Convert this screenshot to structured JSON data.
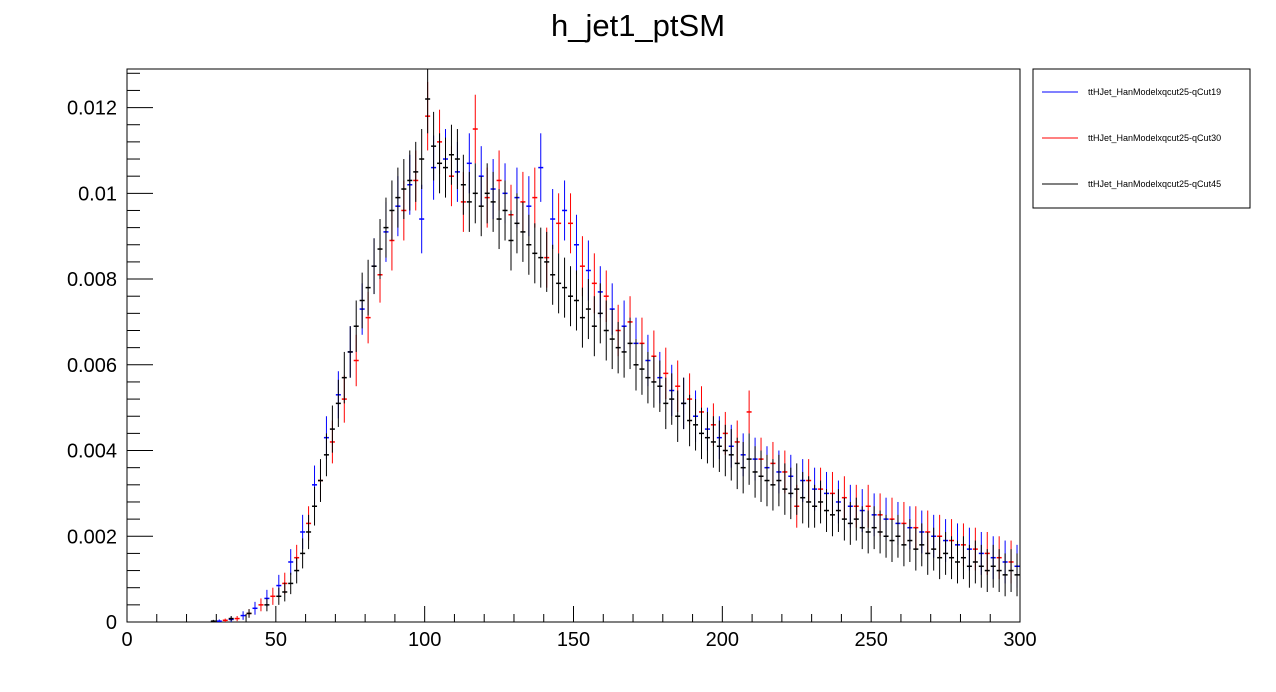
{
  "chart_data": {
    "type": "scatter",
    "title": "h_jet1_ptSM",
    "xlabel": "",
    "ylabel": "",
    "xlim": [
      0,
      300
    ],
    "ylim": [
      0,
      0.0129
    ],
    "grid": false,
    "legend_position": "right",
    "x_ticks": [
      0,
      50,
      100,
      150,
      200,
      250,
      300
    ],
    "x_tick_labels": [
      "0",
      "50",
      "100",
      "150",
      "200",
      "250",
      "300"
    ],
    "y_ticks": [
      0,
      0.002,
      0.004,
      0.006,
      0.008,
      0.01,
      0.012
    ],
    "y_tick_labels": [
      "0",
      "0.002",
      "0.004",
      "0.006",
      "0.008",
      "0.01",
      "0.012"
    ],
    "series": [
      {
        "name": "ttHJet_HanModelxqcut25-qCut19",
        "color": "#0000ff",
        "x": [
          31,
          35,
          39,
          43,
          47,
          51,
          55,
          59,
          63,
          67,
          71,
          75,
          79,
          83,
          87,
          91,
          95,
          99,
          103,
          107,
          111,
          115,
          119,
          123,
          127,
          131,
          135,
          139,
          143,
          147,
          151,
          155,
          159,
          163,
          167,
          171,
          175,
          179,
          183,
          187,
          191,
          195,
          199,
          203,
          207,
          211,
          215,
          219,
          223,
          227,
          231,
          235,
          239,
          243,
          247,
          251,
          255,
          259,
          263,
          267,
          271,
          275,
          279,
          283,
          287,
          291,
          295,
          299
        ],
        "y": [
          2e-05,
          6e-05,
          0.00015,
          0.00032,
          0.00055,
          0.00085,
          0.0014,
          0.0021,
          0.0032,
          0.0043,
          0.0053,
          0.0063,
          0.0073,
          0.0083,
          0.0091,
          0.0097,
          0.0102,
          0.0094,
          0.0106,
          0.0108,
          0.0105,
          0.0107,
          0.0104,
          0.0101,
          0.01,
          0.0099,
          0.0097,
          0.0106,
          0.0094,
          0.0096,
          0.0088,
          0.0082,
          0.0077,
          0.0073,
          0.0069,
          0.0065,
          0.0061,
          0.0057,
          0.0054,
          0.0051,
          0.0048,
          0.0045,
          0.0043,
          0.0041,
          0.0039,
          0.0038,
          0.0036,
          0.0035,
          0.0034,
          0.0033,
          0.0031,
          0.003,
          0.0028,
          0.0027,
          0.0026,
          0.0025,
          0.0024,
          0.0023,
          0.0022,
          0.0021,
          0.002,
          0.0019,
          0.0018,
          0.0017,
          0.0016,
          0.0015,
          0.0014,
          0.0013
        ],
        "yerr": [
          4e-05,
          6e-05,
          0.0001,
          0.00015,
          0.0002,
          0.00025,
          0.0003,
          0.0004,
          0.00045,
          0.0005,
          0.00055,
          0.0006,
          0.0006,
          0.00065,
          0.0007,
          0.0007,
          0.0007,
          0.0008,
          0.00075,
          0.0007,
          0.0007,
          0.0007,
          0.0007,
          0.0007,
          0.0007,
          0.0007,
          0.0007,
          0.0008,
          0.0007,
          0.0007,
          0.0007,
          0.0007,
          0.0006,
          0.0006,
          0.0006,
          0.0006,
          0.0006,
          0.0006,
          0.0006,
          0.0006,
          0.0006,
          0.0005,
          0.0005,
          0.0005,
          0.0005,
          0.0005,
          0.0005,
          0.0005,
          0.0005,
          0.0005,
          0.0005,
          0.0005,
          0.0005,
          0.0005,
          0.0005,
          0.0005,
          0.0005,
          0.0005,
          0.0005,
          0.0005,
          0.0005,
          0.0005,
          0.0005,
          0.0005,
          0.0005,
          0.0005,
          0.0005,
          0.0005
        ]
      },
      {
        "name": "ttHJet_HanModelxqcut25-qCut30",
        "color": "#ff0000",
        "x": [
          33,
          37,
          41,
          45,
          49,
          53,
          57,
          61,
          65,
          69,
          73,
          77,
          81,
          85,
          89,
          93,
          97,
          101,
          105,
          109,
          113,
          117,
          121,
          125,
          129,
          133,
          137,
          141,
          145,
          149,
          153,
          157,
          161,
          165,
          169,
          173,
          177,
          181,
          185,
          189,
          193,
          197,
          201,
          205,
          209,
          213,
          217,
          221,
          225,
          229,
          233,
          237,
          241,
          245,
          249,
          253,
          257,
          261,
          265,
          269,
          273,
          277,
          281,
          285,
          289,
          293,
          297
        ],
        "y": [
          4e-05,
          8e-05,
          0.0002,
          0.0004,
          0.0006,
          0.0009,
          0.0015,
          0.0023,
          0.0033,
          0.0042,
          0.0052,
          0.0061,
          0.0071,
          0.0081,
          0.0089,
          0.0096,
          0.0103,
          0.0118,
          0.0112,
          0.0104,
          0.0098,
          0.0115,
          0.0099,
          0.0103,
          0.0095,
          0.0098,
          0.0099,
          0.0085,
          0.0093,
          0.0093,
          0.0083,
          0.0079,
          0.0076,
          0.0068,
          0.007,
          0.0065,
          0.0062,
          0.0058,
          0.0055,
          0.0052,
          0.0049,
          0.0046,
          0.0044,
          0.0042,
          0.0049,
          0.0038,
          0.0037,
          0.0035,
          0.0027,
          0.0033,
          0.0031,
          0.003,
          0.0029,
          0.0027,
          0.0027,
          0.0025,
          0.0024,
          0.0023,
          0.0022,
          0.0021,
          0.002,
          0.0019,
          0.0018,
          0.0017,
          0.0016,
          0.0015,
          0.0014
        ],
        "yerr": [
          4e-05,
          6e-05,
          0.0001,
          0.00015,
          0.0002,
          0.00025,
          0.0003,
          0.0004,
          0.00045,
          0.0005,
          0.00055,
          0.0006,
          0.0006,
          0.00065,
          0.0007,
          0.0007,
          0.0007,
          0.0008,
          0.00075,
          0.0007,
          0.0007,
          0.0008,
          0.0007,
          0.0007,
          0.0007,
          0.0007,
          0.0007,
          0.0007,
          0.0007,
          0.0007,
          0.0007,
          0.0007,
          0.0006,
          0.0006,
          0.0006,
          0.0006,
          0.0006,
          0.0006,
          0.0006,
          0.0006,
          0.0006,
          0.0005,
          0.0005,
          0.0005,
          0.0005,
          0.0005,
          0.0005,
          0.0005,
          0.0005,
          0.0005,
          0.0005,
          0.0005,
          0.0005,
          0.0005,
          0.0005,
          0.0005,
          0.0005,
          0.0005,
          0.0005,
          0.0005,
          0.0005,
          0.0005,
          0.0005,
          0.0005,
          0.0005,
          0.0005,
          0.0005
        ]
      },
      {
        "name": "ttHJet_HanModelxqcut25-qCut45",
        "color": "#000000",
        "x": [
          29,
          35,
          41,
          47,
          51,
          53,
          55,
          57,
          59,
          61,
          63,
          65,
          67,
          69,
          71,
          73,
          75,
          77,
          79,
          81,
          83,
          85,
          87,
          89,
          91,
          93,
          95,
          97,
          99,
          101,
          103,
          105,
          107,
          109,
          111,
          113,
          115,
          117,
          119,
          121,
          123,
          125,
          127,
          129,
          131,
          133,
          135,
          137,
          139,
          141,
          143,
          145,
          147,
          149,
          151,
          153,
          155,
          157,
          159,
          161,
          163,
          165,
          167,
          169,
          171,
          173,
          175,
          177,
          179,
          181,
          183,
          185,
          187,
          189,
          191,
          193,
          195,
          197,
          199,
          201,
          203,
          205,
          207,
          209,
          211,
          213,
          215,
          217,
          219,
          221,
          223,
          225,
          227,
          229,
          231,
          233,
          235,
          237,
          239,
          241,
          243,
          245,
          247,
          249,
          251,
          253,
          255,
          257,
          259,
          261,
          263,
          265,
          267,
          269,
          271,
          273,
          275,
          277,
          279,
          281,
          283,
          285,
          287,
          289,
          291,
          293,
          295,
          297,
          299
        ],
        "y": [
          2e-05,
          8e-05,
          0.0002,
          0.0004,
          0.0006,
          0.0007,
          0.0009,
          0.0012,
          0.0016,
          0.0021,
          0.0027,
          0.0033,
          0.0039,
          0.0045,
          0.0051,
          0.0057,
          0.0063,
          0.0069,
          0.0075,
          0.0078,
          0.0083,
          0.0087,
          0.0092,
          0.0096,
          0.0099,
          0.0101,
          0.0103,
          0.0105,
          0.0108,
          0.0122,
          0.0111,
          0.0107,
          0.0106,
          0.0109,
          0.0108,
          0.0102,
          0.0098,
          0.01,
          0.0097,
          0.01,
          0.0098,
          0.0094,
          0.0096,
          0.0089,
          0.0093,
          0.0091,
          0.0088,
          0.0086,
          0.0085,
          0.0084,
          0.0081,
          0.0079,
          0.0078,
          0.0076,
          0.0075,
          0.0071,
          0.0073,
          0.0069,
          0.0072,
          0.0068,
          0.0066,
          0.0064,
          0.0063,
          0.0065,
          0.006,
          0.0059,
          0.0057,
          0.0056,
          0.0055,
          0.0051,
          0.0052,
          0.0048,
          0.0051,
          0.0047,
          0.0046,
          0.0044,
          0.0043,
          0.0042,
          0.0041,
          0.004,
          0.0039,
          0.0037,
          0.0036,
          0.0038,
          0.0035,
          0.0034,
          0.0033,
          0.0032,
          0.0033,
          0.0031,
          0.003,
          0.0031,
          0.0029,
          0.0028,
          0.0027,
          0.0028,
          0.0026,
          0.0025,
          0.0026,
          0.0024,
          0.0023,
          0.0024,
          0.0022,
          0.0021,
          0.0022,
          0.0021,
          0.002,
          0.0019,
          0.002,
          0.0018,
          0.0019,
          0.0017,
          0.0018,
          0.0016,
          0.0017,
          0.0015,
          0.0016,
          0.0015,
          0.0014,
          0.0015,
          0.0013,
          0.0014,
          0.0013,
          0.0012,
          0.0013,
          0.0012,
          0.0011,
          0.0012,
          0.0011
        ],
        "yerr": [
          3e-05,
          6e-05,
          0.0001,
          0.00015,
          0.0002,
          0.00022,
          0.00025,
          0.0003,
          0.00035,
          0.0004,
          0.00045,
          0.0005,
          0.0005,
          0.00055,
          0.00055,
          0.0006,
          0.0006,
          0.0006,
          0.00065,
          0.00065,
          0.00065,
          0.0007,
          0.0007,
          0.0007,
          0.0007,
          0.0007,
          0.0007,
          0.0007,
          0.0007,
          0.0008,
          0.0008,
          0.0007,
          0.0007,
          0.0007,
          0.0007,
          0.0007,
          0.0007,
          0.0007,
          0.0007,
          0.0007,
          0.0007,
          0.0007,
          0.0007,
          0.0007,
          0.0007,
          0.0007,
          0.0007,
          0.0007,
          0.0007,
          0.0007,
          0.0007,
          0.0007,
          0.0007,
          0.0007,
          0.0007,
          0.0007,
          0.0007,
          0.0007,
          0.0007,
          0.0007,
          0.0007,
          0.0006,
          0.0006,
          0.0006,
          0.0006,
          0.0006,
          0.0006,
          0.0006,
          0.0006,
          0.0006,
          0.0006,
          0.0006,
          0.0006,
          0.0006,
          0.0006,
          0.0006,
          0.0006,
          0.0006,
          0.0006,
          0.0006,
          0.0006,
          0.0006,
          0.0006,
          0.0006,
          0.0006,
          0.0006,
          0.0006,
          0.0006,
          0.0006,
          0.0006,
          0.0006,
          0.0006,
          0.0006,
          0.0006,
          0.0005,
          0.0005,
          0.0005,
          0.0005,
          0.0005,
          0.0005,
          0.0005,
          0.0005,
          0.0005,
          0.0005,
          0.0005,
          0.0005,
          0.0005,
          0.0005,
          0.0005,
          0.0005,
          0.0005,
          0.0005,
          0.0005,
          0.0005,
          0.0005,
          0.0005,
          0.0005,
          0.0005,
          0.0005,
          0.0005,
          0.0005,
          0.0005,
          0.0005,
          0.0005,
          0.0005,
          0.0005,
          0.0005,
          0.0005,
          0.0005
        ]
      }
    ]
  }
}
